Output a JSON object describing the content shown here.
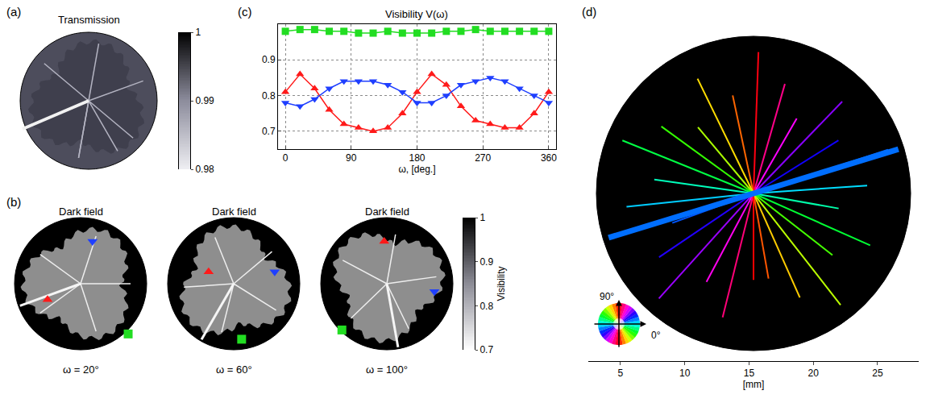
{
  "chart_data": {
    "type": "line",
    "label": "(c)",
    "title": "Visibility V(ω)",
    "x_label": "ω, [deg.]",
    "x": [
      0,
      20,
      40,
      60,
      80,
      100,
      120,
      140,
      160,
      180,
      200,
      220,
      240,
      260,
      280,
      300,
      320,
      340,
      360
    ],
    "xlim": [
      -10,
      370
    ],
    "xticks": [
      0,
      90,
      180,
      270,
      360
    ],
    "ylim": [
      0.65,
      1.0
    ],
    "yticks": [
      0.7,
      0.8,
      0.9
    ],
    "grid": true,
    "series": [
      {
        "color": "#22dd22",
        "marker": "square",
        "values": [
          0.98,
          0.985,
          0.985,
          0.98,
          0.98,
          0.975,
          0.975,
          0.98,
          0.975,
          0.975,
          0.975,
          0.98,
          0.98,
          0.985,
          0.98,
          0.98,
          0.98,
          0.98,
          0.98
        ]
      },
      {
        "color": "#ff1a1a",
        "marker": "triangle-up",
        "values": [
          0.81,
          0.86,
          0.82,
          0.76,
          0.72,
          0.71,
          0.7,
          0.71,
          0.75,
          0.81,
          0.86,
          0.83,
          0.77,
          0.73,
          0.72,
          0.71,
          0.71,
          0.75,
          0.81
        ]
      },
      {
        "color": "#1f3fff",
        "marker": "triangle-down",
        "values": [
          0.78,
          0.77,
          0.79,
          0.82,
          0.84,
          0.84,
          0.84,
          0.83,
          0.81,
          0.78,
          0.78,
          0.8,
          0.83,
          0.84,
          0.85,
          0.84,
          0.82,
          0.8,
          0.78
        ]
      }
    ]
  },
  "panels": {
    "a": {
      "label": "(a)",
      "title": "Transmission",
      "colorbar": {
        "range": [
          0.98,
          1
        ],
        "ticks": [
          0.98,
          0.99,
          1
        ]
      }
    },
    "b": {
      "label": "(b)",
      "images": [
        {
          "title": "Dark field",
          "caption": "ω = 20°",
          "markers": [
            {
              "color": "#ff1a1a",
              "marker": "triangle-up",
              "x": 0.25,
              "y": 0.38
            },
            {
              "color": "#1f3fff",
              "marker": "triangle-down",
              "x": 0.59,
              "y": 0.82
            },
            {
              "color": "#22dd22",
              "marker": "square",
              "x": 0.86,
              "y": 0.12
            }
          ]
        },
        {
          "title": "Dark field",
          "caption": "ω = 60°",
          "markers": [
            {
              "color": "#ff1a1a",
              "marker": "triangle-up",
              "x": 0.31,
              "y": 0.59
            },
            {
              "color": "#1f3fff",
              "marker": "triangle-down",
              "x": 0.81,
              "y": 0.59
            },
            {
              "color": "#22dd22",
              "marker": "square",
              "x": 0.56,
              "y": 0.08
            }
          ]
        },
        {
          "title": "Dark field",
          "caption": "ω = 100°",
          "markers": [
            {
              "color": "#ff1a1a",
              "marker": "triangle-up",
              "x": 0.48,
              "y": 0.82
            },
            {
              "color": "#1f3fff",
              "marker": "triangle-down",
              "x": 0.86,
              "y": 0.44
            },
            {
              "color": "#22dd22",
              "marker": "square",
              "x": 0.16,
              "y": 0.15
            }
          ]
        }
      ],
      "colorbar": {
        "title": "Visibility",
        "range": [
          0.7,
          1
        ],
        "ticks": [
          0.7,
          0.8,
          0.9,
          1
        ]
      }
    },
    "d": {
      "label": "(d)",
      "x_label": "[mm]",
      "xlim": [
        2.5,
        28.2
      ],
      "xticks": [
        5,
        10,
        15,
        20,
        25
      ],
      "wheel_labels": [
        "90°",
        "0°"
      ]
    }
  }
}
